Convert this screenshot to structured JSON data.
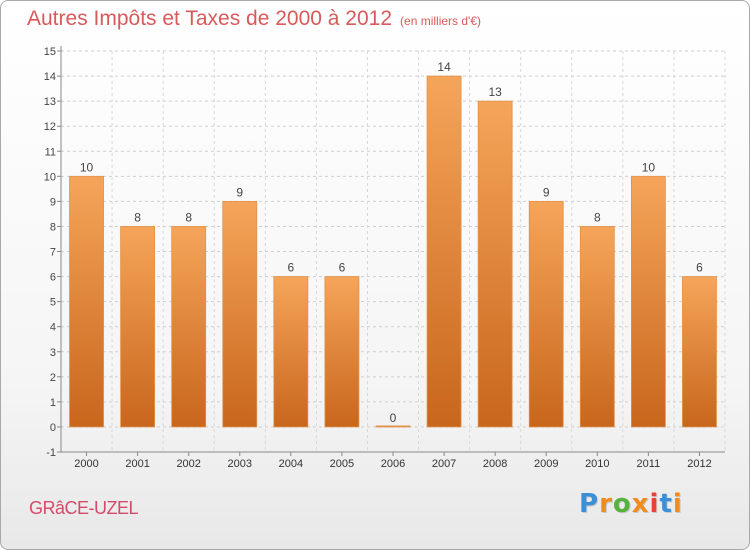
{
  "header": {
    "title": "Autres Impôts et Taxes de 2000 à 2012",
    "subtitle": "(en milliers d'€)"
  },
  "footer": {
    "commune": "GRâCE-UZEL",
    "logo": "Proxiti"
  },
  "colors": {
    "title": "#d95a5a",
    "bar_top": "#f5a55a",
    "bar_bottom": "#c8661c",
    "commune": "#d44a6a",
    "logo_letters": [
      "#3b8fd6",
      "#f08c1e",
      "#56b23c",
      "#f08c1e",
      "#e8413a",
      "#3b8fd6",
      "#f08c1e"
    ]
  },
  "chart_data": {
    "type": "bar",
    "title": "Autres Impôts et Taxes de 2000 à 2012",
    "subtitle": "(en milliers d'€)",
    "categories": [
      "2000",
      "2001",
      "2002",
      "2003",
      "2004",
      "2005",
      "2006",
      "2007",
      "2008",
      "2009",
      "2010",
      "2011",
      "2012"
    ],
    "values": [
      10,
      8,
      8,
      9,
      6,
      6,
      0,
      14,
      13,
      9,
      8,
      10,
      6
    ],
    "data_labels": [
      "10",
      "8",
      "8",
      "9",
      "6",
      "6",
      "0",
      "14",
      "13",
      "9",
      "8",
      "10",
      "6"
    ],
    "ylim": [
      -1,
      15
    ],
    "yticks": [
      "-1",
      "0",
      "1",
      "2",
      "3",
      "4",
      "5",
      "6",
      "7",
      "8",
      "9",
      "10",
      "11",
      "12",
      "13",
      "14",
      "15"
    ],
    "xlabel": "",
    "ylabel": "",
    "grid": true
  }
}
